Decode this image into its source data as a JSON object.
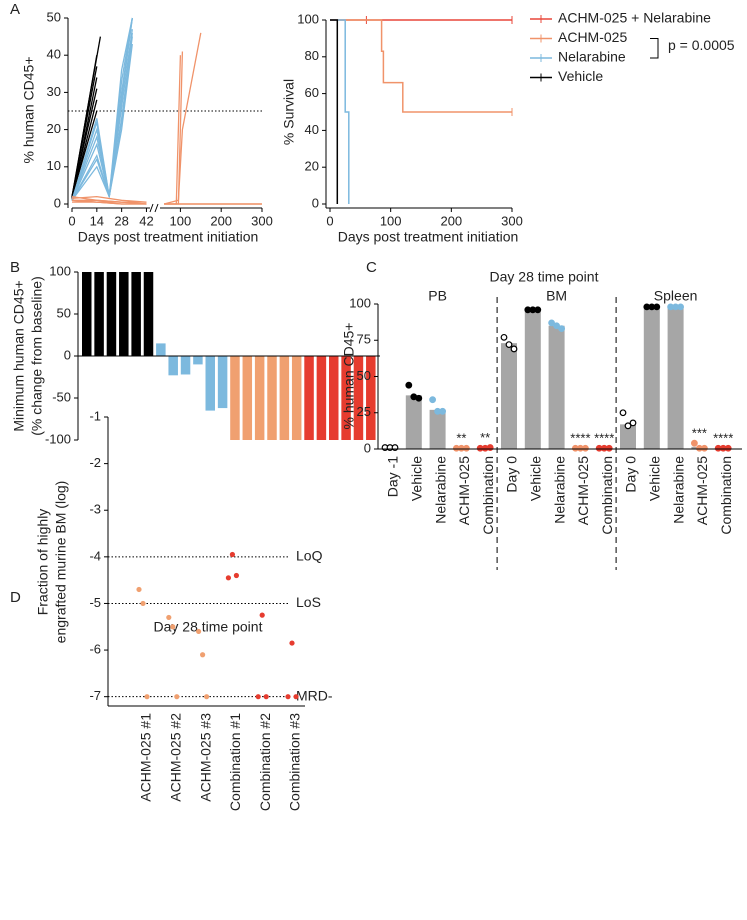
{
  "chart_data": [
    {
      "type": "line",
      "panel_label": "A",
      "ylabel": "% human CD45+",
      "xlabel": "Days post treatment initiation",
      "xlim": [
        [
          0,
          44
        ],
        [
          50,
          300
        ]
      ],
      "xticks": [
        0,
        14,
        28,
        42,
        100,
        200,
        300
      ],
      "ylim": [
        0,
        50
      ],
      "yticks": [
        0,
        10,
        20,
        30,
        40,
        50
      ],
      "reference_line": 25,
      "series": [
        {
          "color": "#000000",
          "lines": [
            {
              "x": [
                0,
                14
              ],
              "values": [
                2,
                25
              ]
            },
            {
              "x": [
                0,
                14
              ],
              "values": [
                1.5,
                28
              ]
            },
            {
              "x": [
                0,
                14
              ],
              "values": [
                2,
                31
              ]
            },
            {
              "x": [
                0,
                14
              ],
              "values": [
                1,
                34
              ]
            },
            {
              "x": [
                0,
                14
              ],
              "values": [
                2,
                37
              ]
            },
            {
              "x": [
                0,
                14
              ],
              "values": [
                1.5,
                40
              ]
            },
            {
              "x": [
                0,
                16
              ],
              "values": [
                2,
                45
              ]
            }
          ]
        },
        {
          "color": "#7cb9de",
          "lines": [
            {
              "x": [
                0,
                14,
                21,
                28,
                34
              ],
              "values": [
                1,
                10,
                2,
                20,
                43
              ]
            },
            {
              "x": [
                0,
                14,
                21,
                28,
                34
              ],
              "values": [
                1,
                13,
                2,
                23,
                45
              ]
            },
            {
              "x": [
                0,
                14,
                21,
                28,
                34
              ],
              "values": [
                1,
                16,
                2,
                26,
                47
              ]
            },
            {
              "x": [
                0,
                14,
                21,
                28,
                34
              ],
              "values": [
                1,
                18,
                2,
                28,
                50
              ]
            },
            {
              "x": [
                0,
                14,
                21,
                28,
                34
              ],
              "values": [
                1,
                20,
                2,
                30,
                50
              ]
            },
            {
              "x": [
                0,
                14,
                21,
                28,
                34
              ],
              "values": [
                1,
                22,
                2,
                33,
                50
              ]
            },
            {
              "x": [
                0,
                14,
                21,
                28,
                34
              ],
              "values": [
                1,
                23,
                2,
                36,
                50
              ]
            },
            {
              "x": [
                0,
                14,
                21,
                28,
                34
              ],
              "values": [
                1,
                12,
                2,
                22,
                46
              ]
            }
          ]
        },
        {
          "color": "#f0936a",
          "lines": [
            {
              "x": [
                0,
                14,
                28,
                42,
                60,
                90,
                100
              ],
              "values": [
                1,
                1,
                0.5,
                0.5,
                0,
                0,
                40
              ]
            },
            {
              "x": [
                0,
                14,
                28,
                42,
                60,
                95,
                105
              ],
              "values": [
                1,
                0.5,
                0.5,
                0,
                0,
                0,
                41
              ]
            },
            {
              "x": [
                0,
                14,
                28,
                42,
                60,
                95,
                105,
                150
              ],
              "values": [
                0.5,
                0.5,
                0,
                0,
                0,
                1,
                20,
                46
              ]
            },
            {
              "x": [
                0,
                14,
                28,
                42,
                60,
                300
              ],
              "values": [
                1,
                0.5,
                0,
                0,
                0,
                0
              ]
            },
            {
              "x": [
                0,
                14,
                28,
                42,
                60,
                300
              ],
              "values": [
                2,
                1,
                0.5,
                0,
                0,
                0
              ]
            },
            {
              "x": [
                0,
                14,
                28,
                42,
                60,
                300
              ],
              "values": [
                1.5,
                2,
                1,
                0.5,
                0,
                0
              ]
            }
          ]
        }
      ]
    },
    {
      "type": "step",
      "ylabel": "% Survival",
      "xlabel": "Days post treatment initiation",
      "xlim": [
        0,
        300
      ],
      "xticks": [
        0,
        100,
        200,
        300
      ],
      "ylim": [
        0,
        100
      ],
      "yticks": [
        0,
        20,
        40,
        60,
        80,
        100
      ],
      "legend": "right",
      "pvalue": "p = 0.0005",
      "series": [
        {
          "name": "ACHM-025 + Nelarabine",
          "color": "#e8473a",
          "x": [
            0,
            300
          ],
          "values": [
            100,
            100
          ],
          "censored": [
            60,
            300
          ]
        },
        {
          "name": "ACHM-025",
          "color": "#f0936a",
          "x": [
            0,
            85,
            88,
            120,
            300
          ],
          "values": [
            100,
            83,
            66,
            50,
            50
          ],
          "censored": [
            300
          ]
        },
        {
          "name": "Nelarabine",
          "color": "#7cb9de",
          "x": [
            0,
            25,
            31
          ],
          "values": [
            100,
            50,
            0
          ]
        },
        {
          "name": "Vehicle",
          "color": "#000000",
          "x": [
            0,
            12
          ],
          "values": [
            100,
            0
          ]
        }
      ]
    },
    {
      "type": "bar",
      "panel_label": "B",
      "ylabel": [
        "Minimum human CD45+",
        "(% change from baseline)"
      ],
      "ylim": [
        -100,
        100
      ],
      "yticks": [
        -100,
        -50,
        0,
        50,
        100
      ],
      "values": [
        100,
        100,
        100,
        100,
        100,
        100,
        15,
        -23,
        -22,
        -10,
        -65,
        -62,
        -100,
        -100,
        -100,
        -100,
        -100,
        -100,
        -100,
        -100,
        -100,
        -100,
        -100,
        -100
      ],
      "colors": [
        "#000000",
        "#000000",
        "#000000",
        "#000000",
        "#000000",
        "#000000",
        "#7cb9de",
        "#7cb9de",
        "#7cb9de",
        "#7cb9de",
        "#7cb9de",
        "#7cb9de",
        "#f0a070",
        "#f0a070",
        "#f0a070",
        "#f0a070",
        "#f0a070",
        "#f0a070",
        "#e63c2f",
        "#e63c2f",
        "#e63c2f",
        "#e63c2f",
        "#e63c2f",
        "#e63c2f"
      ]
    },
    {
      "type": "grouped_bar",
      "panel_label": "C",
      "title": "Day 28 time point",
      "ylabel": "% human CD45+",
      "ylim": [
        0,
        100
      ],
      "yticks": [
        0,
        25,
        50,
        75,
        100
      ],
      "bar_color": "#a6a6a6",
      "point_colors": [
        "none",
        "#000000",
        "#7cb9de",
        "#f0936a",
        "#e63c2f"
      ],
      "groups": [
        {
          "name": "PB",
          "categories": [
            "Day -1",
            "Vehicle",
            "Nelarabine",
            "ACHM-025",
            "Combination"
          ],
          "values": [
            1,
            37,
            27,
            0.5,
            0.5
          ],
          "points": [
            [
              1,
              1,
              1
            ],
            [
              44,
              36,
              35
            ],
            [
              34,
              26,
              26
            ],
            [
              0.5,
              0.5,
              0.5
            ],
            [
              0.5,
              0.5,
              1
            ]
          ],
          "significance": [
            null,
            null,
            null,
            "**",
            "**"
          ]
        },
        {
          "name": "BM",
          "categories": [
            "Day 0",
            "Vehicle",
            "Nelarabine",
            "ACHM-025",
            "Combination"
          ],
          "values": [
            73,
            96,
            85,
            0.5,
            0.5
          ],
          "points": [
            [
              77,
              72,
              69
            ],
            [
              96,
              96,
              96
            ],
            [
              87,
              85,
              83
            ],
            [
              0.5,
              0.5,
              0.5
            ],
            [
              0.5,
              0.5,
              0.5
            ]
          ],
          "significance": [
            null,
            null,
            null,
            "****",
            "****"
          ]
        },
        {
          "name": "Spleen",
          "categories": [
            "Day 0",
            "Vehicle",
            "Nelarabine",
            "ACHM-025",
            "Combination"
          ],
          "values": [
            17,
            98,
            98,
            1.5,
            0.5
          ],
          "points": [
            [
              25,
              16,
              18
            ],
            [
              98,
              98,
              98
            ],
            [
              98,
              98,
              98
            ],
            [
              4,
              0.5,
              0.5
            ],
            [
              0.5,
              0.5,
              0.5
            ]
          ],
          "significance": [
            null,
            null,
            null,
            "***",
            "****"
          ]
        }
      ]
    },
    {
      "type": "dot",
      "panel_label": "D",
      "title": "Day 28 time point",
      "ylabel": [
        "Fraction of highly",
        "engrafted murine BM (log)"
      ],
      "ylim": [
        -7.2,
        -1
      ],
      "yticks": [
        -1,
        -2,
        -3,
        -4,
        -5,
        -6,
        -7
      ],
      "categories": [
        "ACHM-025 #1",
        "ACHM-025 #2",
        "ACHM-025 #3",
        "Combination #1",
        "Combination #2",
        "Combination #3"
      ],
      "colors": [
        "#f0a070",
        "#f0a070",
        "#f0a070",
        "#e63c2f",
        "#e63c2f",
        "#e63c2f"
      ],
      "points": [
        [
          -4.7,
          -5,
          -7
        ],
        [
          -5.3,
          -5.5,
          -7
        ],
        [
          -5.6,
          -6.1,
          -7
        ],
        [
          -4.45,
          -3.95,
          -4.4
        ],
        [
          -7,
          -5.25,
          -7
        ],
        [
          -7,
          -5.85,
          -7
        ]
      ],
      "reference_lines": [
        {
          "value": -4,
          "label": "LoQ"
        },
        {
          "value": -5,
          "label": "LoS"
        },
        {
          "value": -7,
          "label": "MRD-"
        }
      ]
    }
  ]
}
